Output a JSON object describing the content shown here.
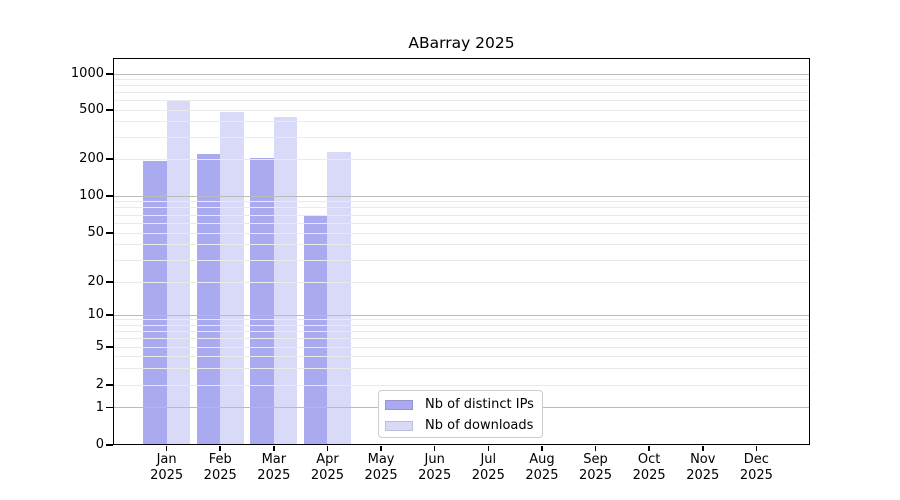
{
  "title": "ABarray 2025",
  "chart_data": {
    "type": "bar",
    "title": "ABarray 2025",
    "categories": [
      "Jan 2025",
      "Feb 2025",
      "Mar 2025",
      "Apr 2025",
      "May 2025",
      "Jun 2025",
      "Jul 2025",
      "Aug 2025",
      "Sep 2025",
      "Oct 2025",
      "Nov 2025",
      "Dec 2025"
    ],
    "series": [
      {
        "name": "Nb of distinct IPs",
        "color": "#aaaaf0",
        "values": [
          192,
          221,
          204,
          70,
          0,
          0,
          0,
          0,
          0,
          0,
          0,
          0
        ]
      },
      {
        "name": "Nb of downloads",
        "color": "#d9d9f8",
        "values": [
          595,
          483,
          440,
          230,
          0,
          0,
          0,
          0,
          0,
          0,
          0,
          0
        ]
      }
    ],
    "xlabel": "",
    "ylabel": "",
    "yscale": "symlog",
    "yticks": [
      0,
      1,
      2,
      5,
      10,
      20,
      50,
      100,
      200,
      500,
      1000
    ],
    "ylim": [
      0,
      1360
    ],
    "grid": "horizontal",
    "grid_major_values": [
      1,
      10,
      100,
      1000
    ],
    "grid_major_color": "#bbbbbb",
    "grid_minor_color": "#eaeaea",
    "legend_position": "lower center",
    "legend_labels": [
      "Nb of distinct IPs",
      "Nb of downloads"
    ]
  }
}
